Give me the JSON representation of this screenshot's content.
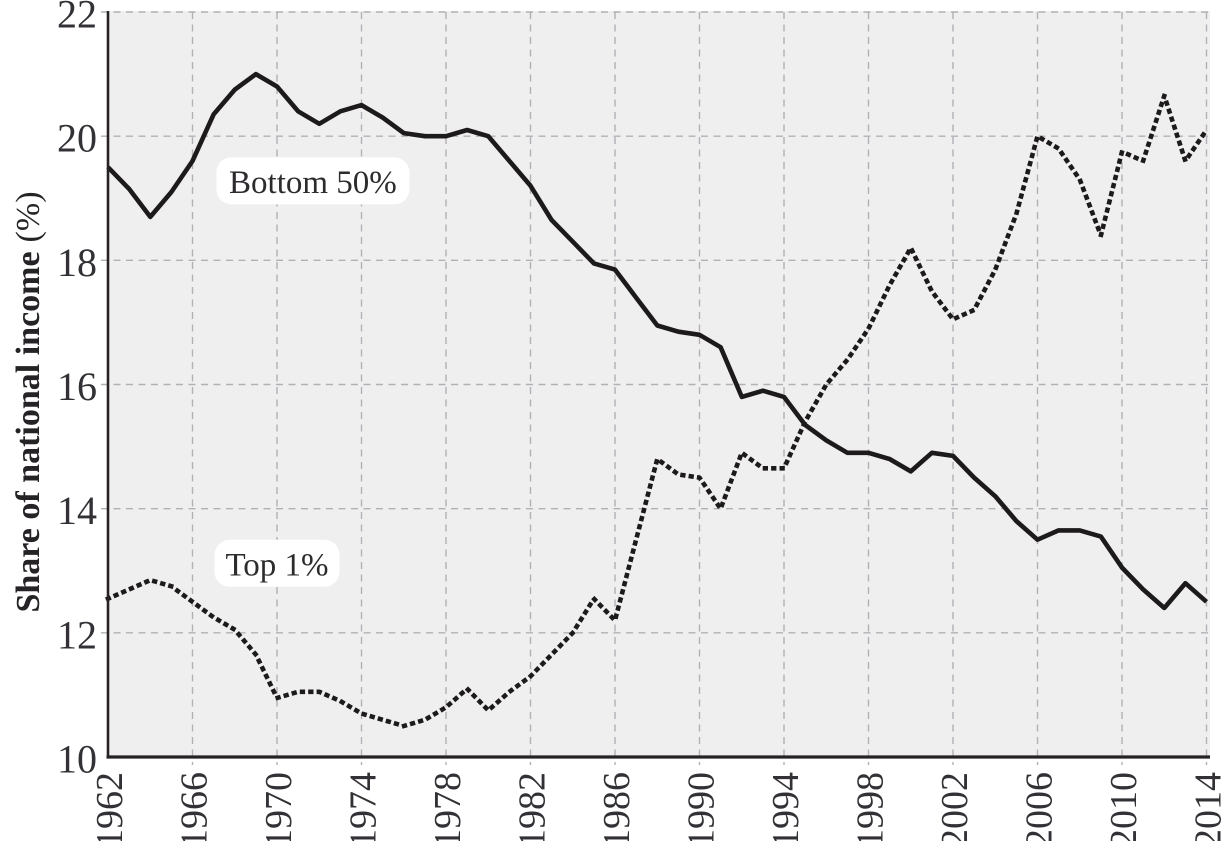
{
  "chart_data": {
    "type": "line",
    "x": [
      1962,
      1963,
      1964,
      1965,
      1966,
      1967,
      1968,
      1969,
      1970,
      1971,
      1972,
      1973,
      1974,
      1975,
      1976,
      1977,
      1978,
      1979,
      1980,
      1981,
      1982,
      1983,
      1984,
      1985,
      1986,
      1987,
      1988,
      1989,
      1990,
      1991,
      1992,
      1993,
      1994,
      1995,
      1996,
      1997,
      1998,
      1999,
      2000,
      2001,
      2002,
      2003,
      2004,
      2005,
      2006,
      2007,
      2008,
      2009,
      2010,
      2011,
      2012,
      2013,
      2014
    ],
    "series": [
      {
        "name": "Bottom 50%",
        "line_style": "solid",
        "values": [
          19.5,
          19.15,
          18.7,
          19.1,
          19.6,
          20.35,
          20.75,
          21.0,
          20.8,
          20.4,
          20.2,
          20.4,
          20.5,
          20.3,
          20.05,
          20.0,
          20.0,
          20.1,
          20.0,
          19.6,
          19.2,
          18.65,
          18.3,
          17.95,
          17.85,
          17.4,
          16.95,
          16.85,
          16.8,
          16.6,
          15.8,
          15.9,
          15.8,
          15.35,
          15.1,
          14.9,
          14.9,
          14.8,
          14.6,
          14.9,
          14.85,
          14.5,
          14.2,
          13.8,
          13.5,
          13.65,
          13.65,
          13.55,
          13.05,
          12.7,
          12.4,
          12.8,
          12.5
        ]
      },
      {
        "name": "Top 1%",
        "line_style": "dotted",
        "values": [
          12.55,
          12.7,
          12.85,
          12.75,
          12.5,
          12.25,
          12.05,
          11.65,
          10.95,
          11.05,
          11.05,
          10.9,
          10.7,
          10.6,
          10.5,
          10.6,
          10.8,
          11.1,
          10.75,
          11.05,
          11.3,
          11.65,
          12.0,
          12.55,
          12.2,
          13.5,
          14.8,
          14.55,
          14.5,
          14.0,
          14.9,
          14.65,
          14.65,
          15.4,
          16.0,
          16.4,
          16.9,
          17.6,
          18.2,
          17.5,
          17.05,
          17.2,
          17.85,
          18.75,
          20.0,
          19.8,
          19.3,
          18.4,
          19.75,
          19.6,
          20.65,
          19.6,
          20.1
        ]
      }
    ],
    "title": "",
    "xlabel": "",
    "ylabel": "Share of national income (%)",
    "ylabel_main": "Share of national income",
    "ylabel_unit": "(%)",
    "xlim": [
      1962,
      2014
    ],
    "ylim": [
      10,
      22
    ],
    "xticks": [
      1962,
      1966,
      1970,
      1974,
      1978,
      1982,
      1986,
      1990,
      1994,
      1998,
      2002,
      2006,
      2010,
      2014
    ],
    "yticks": [
      10,
      12,
      14,
      16,
      18,
      20,
      22
    ],
    "grid": true,
    "grid_style": "dashed",
    "legend_position": "none",
    "annotations": [
      {
        "label": "Bottom 50%",
        "x": 1971.7,
        "y": 19.28
      },
      {
        "label": "Top 1%",
        "x": 1970.0,
        "y": 13.12
      }
    ],
    "colors": {
      "line": "#1d1a1c",
      "grid": "#b2b0b4",
      "plot_background": "#f0eff0",
      "tick_text": "#343136",
      "annotation_background": "#ffffff"
    }
  }
}
